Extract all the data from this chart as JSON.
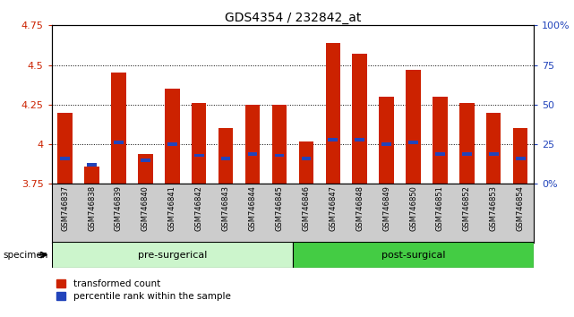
{
  "title": "GDS4354 / 232842_at",
  "samples": [
    "GSM746837",
    "GSM746838",
    "GSM746839",
    "GSM746840",
    "GSM746841",
    "GSM746842",
    "GSM746843",
    "GSM746844",
    "GSM746845",
    "GSM746846",
    "GSM746847",
    "GSM746848",
    "GSM746849",
    "GSM746850",
    "GSM746851",
    "GSM746852",
    "GSM746853",
    "GSM746854"
  ],
  "red_values": [
    4.2,
    3.86,
    4.45,
    3.94,
    4.35,
    4.26,
    4.1,
    4.25,
    4.25,
    4.02,
    4.64,
    4.57,
    4.3,
    4.47,
    4.3,
    4.26,
    4.2,
    4.1
  ],
  "blue_values": [
    3.91,
    3.87,
    4.01,
    3.9,
    4.0,
    3.93,
    3.91,
    3.94,
    3.93,
    3.91,
    4.03,
    4.03,
    4.0,
    4.01,
    3.94,
    3.94,
    3.94,
    3.91
  ],
  "ylim_left": [
    3.75,
    4.75
  ],
  "ylim_right": [
    0,
    100
  ],
  "yticks_left": [
    3.75,
    4.0,
    4.25,
    4.5,
    4.75
  ],
  "yticks_right": [
    0,
    25,
    50,
    75,
    100
  ],
  "ytick_left_labels": [
    "3.75",
    "4",
    "4.25",
    "4.5",
    "4.75"
  ],
  "ytick_right_labels": [
    "0%",
    "25",
    "50",
    "75",
    "100%"
  ],
  "bar_bottom": 3.75,
  "pre_surgical_count": 9,
  "pre_surgical_label": "pre-surgerical",
  "post_surgical_label": "post-surgical",
  "pre_color": "#ccf5cc",
  "post_color": "#44cc44",
  "bar_color": "#cc2200",
  "blue_color": "#2244bb",
  "axis_color_left": "#cc2200",
  "axis_color_right": "#2244bb",
  "bg_color": "#ffffff",
  "specimen_label": "specimen",
  "legend_red_label": "transformed count",
  "legend_blue_label": "percentile rank within the sample",
  "bar_width": 0.55
}
